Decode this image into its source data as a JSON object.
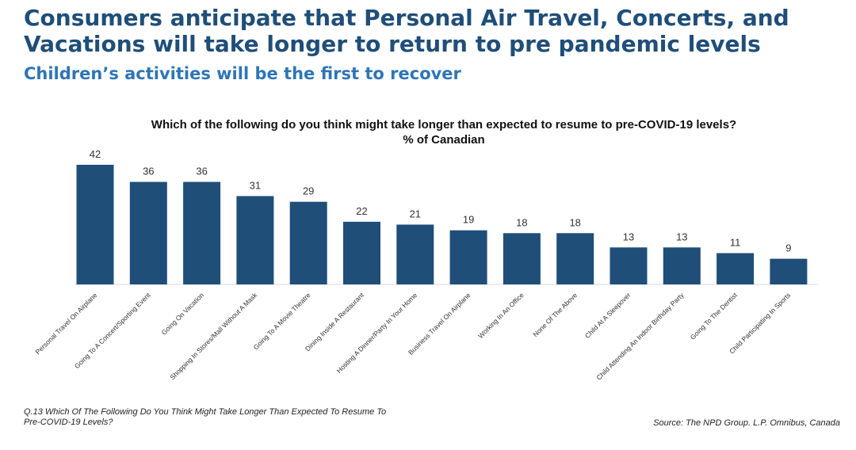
{
  "slide": {
    "headline": "Consumers anticipate that Personal Air Travel, Concerts, and Vacations will take longer to return to pre pandemic levels",
    "subheadline": "Children’s  activities will be the first to recover",
    "footnote": "Q.13 Which Of The Following Do You Think Might Take Longer Than Expected To Resume To Pre-COVID-19 Levels?",
    "source": "Source: The NPD Group. L.P. Omnibus, Canada"
  },
  "chart_data": {
    "type": "bar",
    "title": "Which of the following do you think might take longer than expected to resume to pre-COVID-19 levels?",
    "subtitle": "% of Canadian",
    "categories": [
      "Personal Travel On Airplane",
      "Going To A Concert/Sporting Event",
      "Going On Vacation",
      "Shopping In Stores/Mall Without A Mask",
      "Going To A Movie Theatre",
      "Dining Inside A Restaurant",
      "Hosting A Dinner/Party In Your Home",
      "Business Travel On Airplane",
      "Working In An Office",
      "None Of The Above",
      "Child At A Sleepover",
      "Child Attending An Indoor Birthday Party",
      "Going To The Dentist",
      "Child Participating In Sports"
    ],
    "values": [
      42,
      36,
      36,
      31,
      29,
      22,
      21,
      19,
      18,
      18,
      13,
      13,
      11,
      9
    ],
    "bar_color": "#1f4e79",
    "ylim": [
      0,
      45
    ],
    "grid": false,
    "legend": "none"
  }
}
